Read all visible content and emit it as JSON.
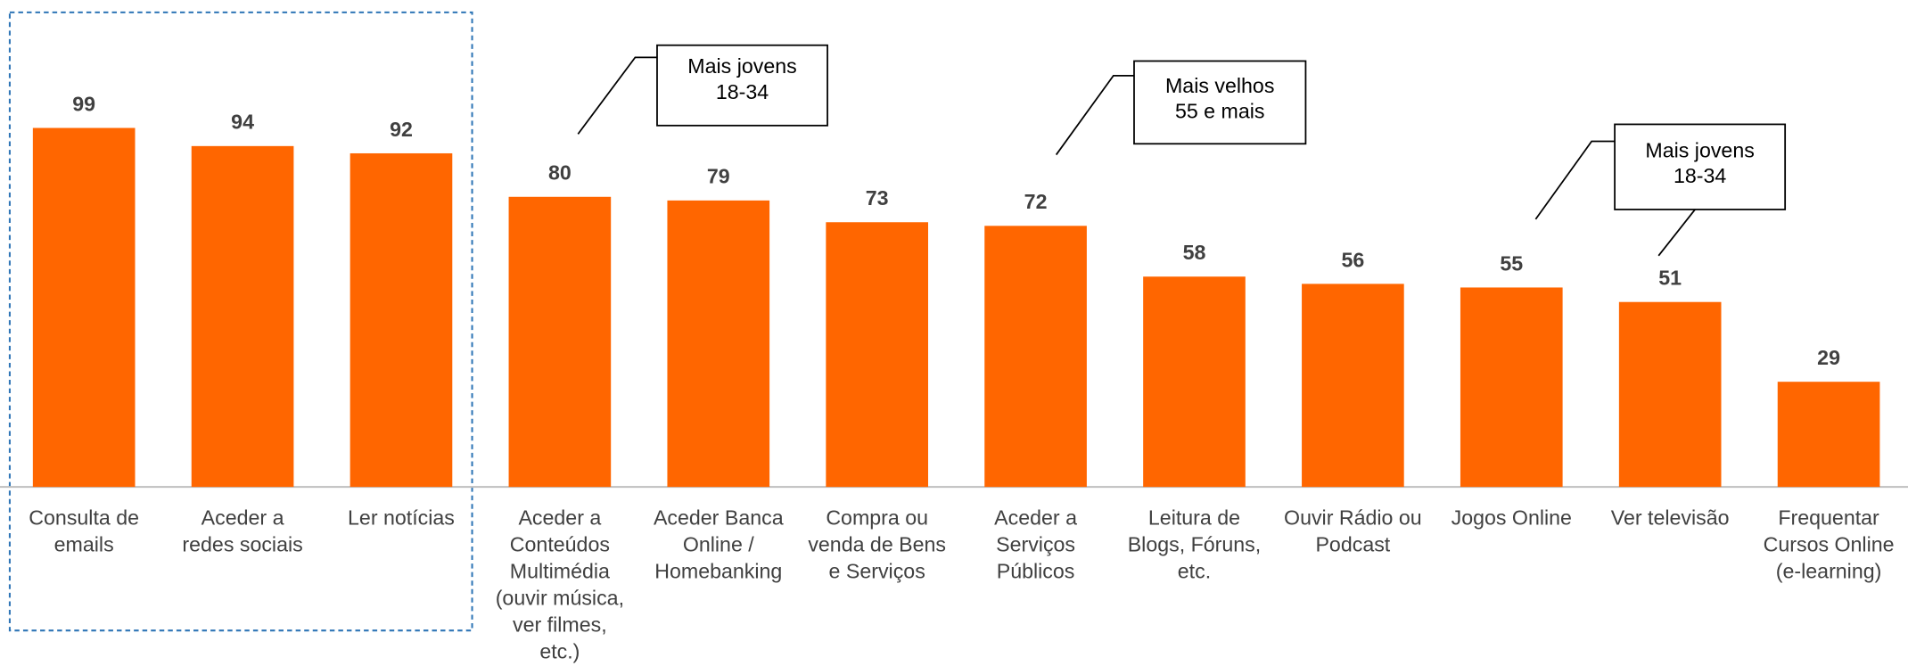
{
  "chart_data": {
    "type": "bar",
    "categories": [
      "Consulta de\nemails",
      "Aceder a\nredes sociais",
      "Ler notícias",
      "Aceder a\nConteúdos\nMultimédia\n(ouvir música,\nver filmes,\netc.)",
      "Aceder Banca\nOnline /\nHomebanking",
      "Compra ou\nvenda de Bens\ne Serviços",
      "Aceder a\nServiços\nPúblicos",
      "Leitura de\nBlogs, Fóruns,\netc.",
      "Ouvir Rádio ou\nPodcast",
      "Jogos Online",
      "Ver televisão",
      "Frequentar\nCursos Online\n(e-learning)"
    ],
    "values": [
      99,
      94,
      92,
      80,
      79,
      73,
      72,
      58,
      56,
      55,
      51,
      29
    ],
    "color": "#ff6600",
    "ylim": [
      0,
      100
    ],
    "annotations": [
      "Mais jovens\n18-34",
      "Mais velhos\n55 e mais",
      "Mais jovens\n18-34"
    ]
  }
}
